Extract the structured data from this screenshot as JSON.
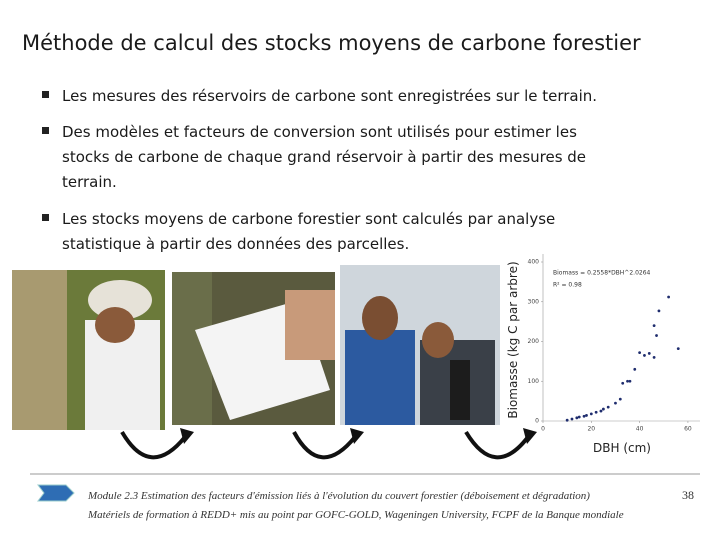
{
  "slide": {
    "title": "Méthode de calcul des stocks moyens de carbone forestier",
    "bullets": [
      [
        "Les mesures des réservoirs de carbone sont enregistrées sur le terrain."
      ],
      [
        "Des modèles et facteurs de conversion sont utilisés pour estimer les",
        "stocks de carbone de chaque grand réservoir à partir des mesures de",
        "terrain."
      ],
      [
        "Les stocks moyens de carbone forestier sont calculés par analyse",
        "statistique à partir des données des parcelles."
      ]
    ],
    "footer": {
      "module": "Module 2.3 Estimation des facteurs d'émission liés à l'évolution du couvert forestier (déboisement et dégradation)",
      "page": "38",
      "credits": "Matériels de formation à REDD+ mis au point par GOFC-GOLD, Wageningen University, FCPF de la Banque mondiale"
    }
  },
  "chart_data": {
    "type": "scatter",
    "x_label": "DBH (cm)",
    "y_label": "Biomasse (kg C par arbre)",
    "annotations": [
      "Biomass = 0.2558*DBH^2.0264",
      "R² = 0.98"
    ],
    "x": [
      10,
      12,
      14,
      15,
      17,
      18,
      20,
      22,
      24,
      25,
      27,
      30,
      32,
      33,
      35,
      36,
      38,
      40,
      42,
      44,
      46,
      46,
      47,
      48,
      52,
      56
    ],
    "values": [
      2,
      5,
      8,
      10,
      12,
      14,
      18,
      22,
      25,
      30,
      35,
      45,
      55,
      95,
      100,
      100,
      130,
      172,
      165,
      170,
      160,
      240,
      215,
      277,
      312,
      182
    ],
    "color": "#1f2d6e",
    "xlim": [
      0,
      65
    ],
    "ylim": [
      0,
      420
    ],
    "xticks": [
      0,
      20,
      40,
      60
    ],
    "yticks": [
      0,
      100,
      200,
      300,
      400
    ]
  }
}
